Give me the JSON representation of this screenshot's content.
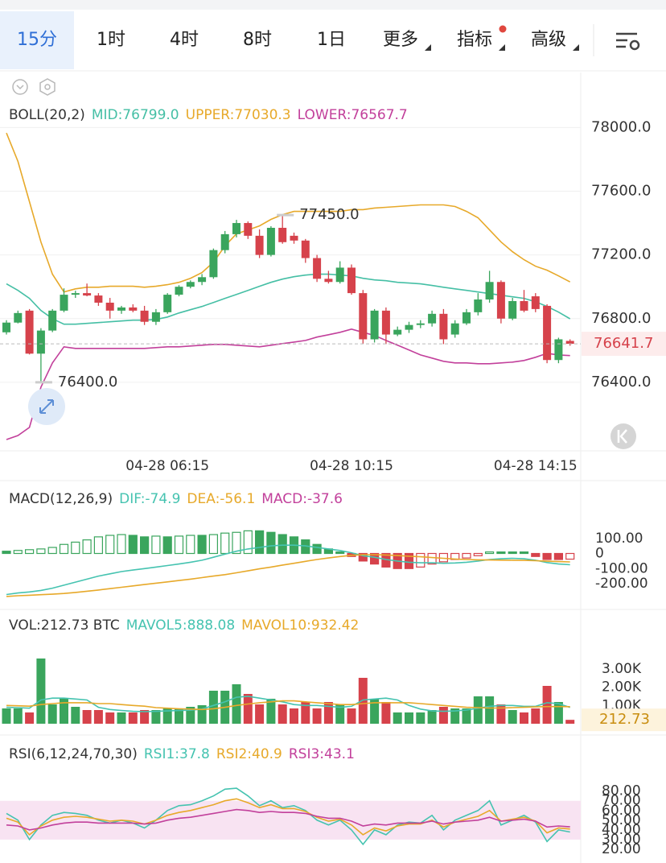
{
  "tabs": [
    "15分",
    "1时",
    "4时",
    "8时",
    "1日",
    "更多",
    "指标",
    "高级"
  ],
  "chart_data": [
    {
      "type": "candlestick",
      "title": "BOLL(20,2)",
      "categories": [
        null,
        null,
        null,
        null,
        null,
        null,
        null,
        null,
        null,
        null,
        null,
        null,
        null,
        null,
        "04-28 06:15",
        null,
        null,
        null,
        null,
        null,
        null,
        null,
        null,
        null,
        null,
        null,
        null,
        null,
        null,
        null,
        "04-28 10:15",
        null,
        null,
        null,
        null,
        null,
        null,
        null,
        null,
        null,
        null,
        null,
        null,
        null,
        null,
        null,
        "04-28 14:15",
        null,
        null,
        null
      ],
      "open": [
        76714,
        76775,
        76850,
        76580,
        76725,
        76850,
        76950,
        76960,
        76945,
        76900,
        76850,
        76870,
        76850,
        76780,
        76840,
        76950,
        77000,
        77030,
        77060,
        77230,
        77330,
        77400,
        77320,
        77200,
        77370,
        77320,
        77290,
        77180,
        77050,
        77030,
        77120,
        76960,
        76670,
        76850,
        76700,
        76730,
        76760,
        76770,
        76830,
        76700,
        76770,
        76840,
        76920,
        77030,
        76800,
        76910,
        76940,
        76880,
        76540,
        76660
      ],
      "high": [
        76790,
        76850,
        76860,
        76740,
        76860,
        76990,
        76975,
        77020,
        76960,
        76930,
        76880,
        76890,
        76880,
        76860,
        76960,
        77010,
        77040,
        77080,
        77240,
        77350,
        77420,
        77410,
        77360,
        77380,
        77450,
        77340,
        77300,
        77200,
        77100,
        77160,
        77140,
        76980,
        76860,
        76870,
        76750,
        76780,
        76790,
        76850,
        76860,
        76790,
        76860,
        76960,
        77100,
        77040,
        76930,
        76980,
        76960,
        76890,
        76680,
        76670
      ],
      "low": [
        76700,
        76770,
        76575,
        76400,
        76715,
        76840,
        76930,
        76940,
        76880,
        76800,
        76830,
        76840,
        76760,
        76760,
        76830,
        76940,
        76990,
        77010,
        77050,
        77210,
        77310,
        77300,
        77180,
        77190,
        77270,
        77270,
        77150,
        77030,
        77020,
        77020,
        76950,
        76640,
        76650,
        76640,
        76690,
        76710,
        76740,
        76750,
        76640,
        76680,
        76760,
        76820,
        76900,
        76770,
        76790,
        76840,
        76840,
        76520,
        76520,
        76630
      ],
      "close": [
        76775,
        76835,
        76580,
        76725,
        76850,
        76950,
        76960,
        76945,
        76900,
        76850,
        76870,
        76850,
        76780,
        76840,
        76950,
        77000,
        77030,
        77060,
        77230,
        77330,
        77400,
        77320,
        77200,
        77370,
        77280,
        77290,
        77180,
        77050,
        77030,
        77120,
        76960,
        76670,
        76850,
        76700,
        76730,
        76760,
        76770,
        76830,
        76670,
        76770,
        76840,
        76920,
        77030,
        76800,
        76910,
        76850,
        76860,
        76540,
        76670,
        76641.7
      ],
      "up_color": "#3aa55d",
      "down_color": "#d6424b",
      "series": [
        {
          "name": "MID:76799.0",
          "color": "#45bfa5",
          "values": [
            77018,
            76977,
            76927,
            76851,
            76800,
            76765,
            76765,
            76770,
            76775,
            76780,
            76785,
            76790,
            76790,
            76795,
            76810,
            76835,
            76856,
            76876,
            76901,
            76927,
            76952,
            76977,
            77003,
            77028,
            77048,
            77063,
            77073,
            77079,
            77079,
            77073,
            77068,
            77053,
            77043,
            77038,
            77028,
            77023,
            77018,
            77008,
            76997,
            76987,
            76977,
            76967,
            76957,
            76947,
            76937,
            76927,
            76906,
            76876,
            76841,
            76799.0
          ]
        },
        {
          "name": "UPPER:77030.3",
          "color": "#e7a92a",
          "values": [
            77965,
            77787,
            77534,
            77281,
            77079,
            76967,
            76987,
            76997,
            76997,
            77003,
            77003,
            77003,
            76997,
            77003,
            77013,
            77028,
            77053,
            77089,
            77154,
            77256,
            77332,
            77357,
            77382,
            77423,
            77453,
            77473,
            77473,
            77473,
            77473,
            77473,
            77484,
            77484,
            77494,
            77499,
            77504,
            77509,
            77514,
            77514,
            77514,
            77504,
            77473,
            77433,
            77357,
            77281,
            77220,
            77170,
            77129,
            77104,
            77068,
            77030.3
          ]
        },
        {
          "name": "LOWER:76567.7",
          "color": "#c2409b",
          "values": [
            76041,
            76066,
            76117,
            76370,
            76522,
            76623,
            76613,
            76613,
            76613,
            76613,
            76613,
            76613,
            76613,
            76618,
            76623,
            76623,
            76628,
            76633,
            76638,
            76638,
            76633,
            76628,
            76623,
            76633,
            76643,
            76653,
            76663,
            76684,
            76699,
            76714,
            76734,
            76714,
            76694,
            76663,
            76633,
            76603,
            76572,
            76552,
            76532,
            76522,
            76522,
            76517,
            76517,
            76522,
            76527,
            76537,
            76557,
            76582,
            76572,
            76567.7
          ]
        }
      ],
      "ylim": [
        75970,
        78320
      ],
      "yticks": [
        {
          "value": 78000,
          "label": "78000.0"
        },
        {
          "value": 77600,
          "label": "77600.0"
        },
        {
          "value": 77200,
          "label": "77200.0"
        },
        {
          "value": 76800,
          "label": "76800.0"
        },
        {
          "value": 76400,
          "label": "76400.0"
        }
      ],
      "grid": true,
      "max_label": {
        "value": 77450,
        "label": "77450.0"
      },
      "min_label": {
        "value": 76400,
        "label": "76400.0"
      },
      "last": {
        "value": 76641.7,
        "label": "76641.7"
      }
    },
    {
      "type": "macd",
      "title": "MACD(12,26,9)",
      "up_color": "#3aa55d",
      "down_color": "#d6424b",
      "series": [
        {
          "name": "DIF:-74.9",
          "color": "#45c3b0",
          "values": [
            -272,
            -262,
            -255,
            -245,
            -230,
            -210,
            -190,
            -170,
            -150,
            -135,
            -120,
            -110,
            -100,
            -90,
            -80,
            -70,
            -58,
            -45,
            -25,
            -5,
            15,
            30,
            40,
            50,
            55,
            55,
            50,
            40,
            30,
            20,
            5,
            -15,
            -25,
            -40,
            -50,
            -58,
            -62,
            -62,
            -65,
            -63,
            -58,
            -50,
            -40,
            -35,
            -32,
            -35,
            -45,
            -60,
            -70,
            -74.9
          ]
        },
        {
          "name": "DEA:-56.1",
          "color": "#e7a92a",
          "values": [
            -285,
            -280,
            -277,
            -273,
            -270,
            -265,
            -258,
            -250,
            -242,
            -233,
            -224,
            -215,
            -206,
            -197,
            -188,
            -179,
            -170,
            -160,
            -150,
            -140,
            -128,
            -115,
            -102,
            -90,
            -77,
            -65,
            -52,
            -40,
            -30,
            -20,
            -12,
            -8,
            -8,
            -10,
            -14,
            -18,
            -22,
            -27,
            -32,
            -37,
            -40,
            -42,
            -43,
            -44,
            -45,
            -46,
            -48,
            -51,
            -54,
            -56.1
          ]
        },
        {
          "name": "MACD:-37.6",
          "color": "#c2409b",
          "values": [
            15,
            20,
            25,
            30,
            40,
            60,
            75,
            90,
            110,
            120,
            125,
            120,
            110,
            115,
            110,
            115,
            120,
            120,
            125,
            135,
            140,
            150,
            150,
            140,
            125,
            110,
            90,
            60,
            30,
            10,
            -20,
            -50,
            -70,
            -90,
            -100,
            -100,
            -90,
            -70,
            -55,
            -40,
            -30,
            -15,
            10,
            10,
            10,
            10,
            -20,
            -40,
            -40,
            -37.6
          ]
        }
      ],
      "ylim": [
        -360,
        280
      ],
      "yticks": [
        {
          "value": 100,
          "label": "100.00"
        },
        0,
        {
          "value": -100,
          "label": "-100.00"
        },
        {
          "value": -200,
          "label": "-200.00"
        }
      ],
      "grid": false
    },
    {
      "type": "volume",
      "title": "VOL:212.73 BTC",
      "up_color": "#3aa55d",
      "down_color": "#d6424b",
      "values": [
        837,
        837,
        617,
        3568,
        1057,
        1366,
        925,
        749,
        749,
        617,
        617,
        617,
        749,
        749,
        837,
        837,
        925,
        1013,
        1806,
        1806,
        2159,
        1630,
        1057,
        1366,
        1057,
        837,
        1189,
        837,
        1189,
        1057,
        837,
        2511,
        1366,
        1189,
        617,
        617,
        617,
        749,
        925,
        837,
        837,
        1498,
        1498,
        1057,
        749,
        617,
        837,
        2070,
        1189,
        212.73
      ],
      "series": [
        {
          "name": "MAVOL5:888.08",
          "color": "#45c3b0",
          "values": [
            900,
            880,
            850,
            1300,
            1400,
            1400,
            1350,
            1300,
            900,
            780,
            720,
            680,
            660,
            680,
            700,
            720,
            740,
            800,
            1000,
            1200,
            1450,
            1500,
            1400,
            1300,
            1200,
            1050,
            1000,
            1000,
            950,
            900,
            950,
            1300,
            1350,
            1400,
            1300,
            1000,
            800,
            700,
            680,
            700,
            750,
            850,
            950,
            1000,
            1000,
            950,
            950,
            1150,
            1100,
            888.08
          ]
        },
        {
          "name": "MAVOL10:932.42",
          "color": "#e7a92a",
          "values": [
            1000,
            980,
            960,
            1050,
            1100,
            1150,
            1150,
            1150,
            1100,
            1100,
            1050,
            1000,
            960,
            880,
            850,
            820,
            800,
            780,
            820,
            900,
            1000,
            1080,
            1150,
            1200,
            1250,
            1250,
            1200,
            1150,
            1100,
            1050,
            1050,
            1100,
            1150,
            1150,
            1150,
            1150,
            1100,
            1050,
            1000,
            950,
            900,
            880,
            860,
            860,
            880,
            900,
            920,
            940,
            940,
            932.42
          ]
        }
      ],
      "ylim": [
        0,
        4800
      ],
      "yticks": [
        {
          "value": 3000,
          "label": "3.00K"
        },
        {
          "value": 2000,
          "label": "2.00K"
        },
        {
          "value": 1000,
          "label": "1.00K"
        }
      ],
      "grid": false,
      "last": {
        "value": 212.73,
        "label": "212.73"
      }
    },
    {
      "type": "rsi",
      "title": "RSI(6,12,24,70,30)",
      "series": [
        {
          "name": "RSI1:37.8",
          "color": "#45c3b0",
          "values": [
            57,
            50,
            30,
            45,
            55,
            58,
            57,
            55,
            50,
            47,
            50,
            47,
            42,
            50,
            60,
            65,
            66,
            70,
            75,
            82,
            83,
            75,
            65,
            70,
            63,
            65,
            60,
            50,
            45,
            50,
            40,
            25,
            40,
            35,
            45,
            48,
            47,
            55,
            40,
            50,
            55,
            60,
            70,
            45,
            50,
            55,
            48,
            28,
            40,
            37.8
          ]
        },
        {
          "name": "RSI2:40.9",
          "color": "#e7a92a",
          "values": [
            52,
            48,
            35,
            44,
            50,
            53,
            54,
            53,
            51,
            49,
            50,
            49,
            46,
            50,
            55,
            58,
            60,
            63,
            66,
            70,
            72,
            68,
            63,
            66,
            62,
            62,
            59,
            53,
            49,
            51,
            45,
            35,
            42,
            39,
            44,
            46,
            46,
            50,
            43,
            48,
            51,
            54,
            60,
            49,
            51,
            53,
            49,
            37,
            42,
            40.9
          ]
        },
        {
          "name": "RSI3:43.1",
          "color": "#c2409b",
          "values": [
            45,
            44,
            40,
            42,
            45,
            47,
            48,
            48,
            47,
            47,
            47,
            47,
            46,
            47,
            50,
            52,
            53,
            55,
            57,
            59,
            61,
            60,
            58,
            59,
            58,
            58,
            57,
            54,
            52,
            52,
            49,
            44,
            46,
            45,
            47,
            47,
            47,
            49,
            46,
            48,
            49,
            50,
            53,
            49,
            50,
            51,
            49,
            43,
            44,
            43.1
          ]
        }
      ],
      "ylim": [
        7.5,
        103
      ],
      "yticks": [
        {
          "value": 80,
          "label": "80.00"
        },
        {
          "value": 70,
          "label": "70.00"
        },
        {
          "value": 60,
          "label": "60.00"
        },
        {
          "value": 50,
          "label": "50.00"
        },
        {
          "value": 40,
          "label": "40.00"
        },
        {
          "value": 30,
          "label": "30.00"
        },
        {
          "value": 20,
          "label": "20.00"
        }
      ],
      "band": [
        30,
        70
      ],
      "band_color": "#f8e3f2",
      "grid": false
    }
  ]
}
